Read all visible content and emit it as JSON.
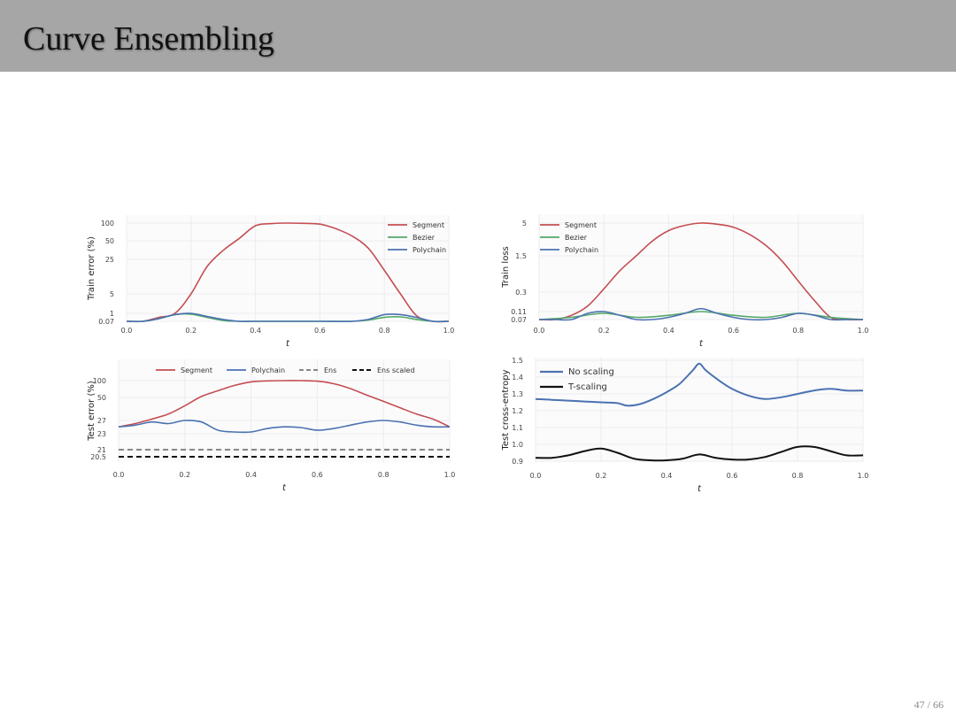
{
  "slide": {
    "title": "Curve Ensembling",
    "page_current": "47",
    "page_separator": " / ",
    "page_total": "66",
    "colors": {
      "title_bar": "#a6a6a6",
      "background": "#ffffff"
    }
  },
  "chart_data": [
    {
      "type": "line",
      "xlabel": "t",
      "ylabel": "Train error (%)",
      "xlim": [
        0,
        1
      ],
      "xticks": [
        "0.0",
        "0.2",
        "0.4",
        "0.6",
        "0.8",
        "1.0"
      ],
      "yticks": [
        "0.07",
        "1",
        "5",
        "25",
        "50",
        "100"
      ],
      "yscale": "nonlinear (tick labels as shown)",
      "grid": true,
      "legend": "top-right",
      "series": [
        {
          "name": "Segment",
          "color": "#c44e52",
          "x": [
            0,
            0.05,
            0.1,
            0.15,
            0.2,
            0.25,
            0.3,
            0.35,
            0.4,
            0.45,
            0.5,
            0.55,
            0.6,
            0.65,
            0.7,
            0.75,
            0.8,
            0.85,
            0.9,
            0.95,
            1.0
          ],
          "y": [
            0.07,
            0.07,
            0.3,
            1,
            5,
            18,
            35,
            55,
            90,
            98,
            100,
            99,
            96,
            80,
            60,
            38,
            15,
            5,
            0.5,
            0.07,
            0.07
          ]
        },
        {
          "name": "Bezier",
          "color": "#55a868",
          "x": [
            0,
            0.05,
            0.1,
            0.15,
            0.2,
            0.25,
            0.3,
            0.35,
            0.4,
            0.5,
            0.6,
            0.7,
            0.75,
            0.8,
            0.85,
            0.9,
            0.95,
            1.0
          ],
          "y": [
            0.07,
            0.07,
            0.2,
            0.7,
            0.8,
            0.3,
            0.1,
            0.07,
            0.07,
            0.07,
            0.07,
            0.07,
            0.12,
            0.3,
            0.35,
            0.15,
            0.07,
            0.07
          ]
        },
        {
          "name": "Polychain",
          "color": "#4c72b0",
          "x": [
            0,
            0.05,
            0.1,
            0.15,
            0.2,
            0.25,
            0.3,
            0.35,
            0.4,
            0.5,
            0.6,
            0.7,
            0.75,
            0.8,
            0.85,
            0.9,
            0.95,
            1.0
          ],
          "y": [
            0.07,
            0.07,
            0.2,
            0.7,
            1,
            0.4,
            0.15,
            0.07,
            0.07,
            0.07,
            0.07,
            0.07,
            0.15,
            0.7,
            0.7,
            0.3,
            0.07,
            0.07
          ]
        }
      ]
    },
    {
      "type": "line",
      "xlabel": "t",
      "ylabel": "Train loss",
      "xlim": [
        0,
        1
      ],
      "xticks": [
        "0.0",
        "0.2",
        "0.4",
        "0.6",
        "0.8",
        "1.0"
      ],
      "yticks": [
        "0.07",
        "0.11",
        "0.3",
        "1.5",
        "5"
      ],
      "yscale": "nonlinear (tick labels as shown)",
      "grid": true,
      "legend": "top-left",
      "series": [
        {
          "name": "Segment",
          "color": "#c44e52",
          "x": [
            0,
            0.05,
            0.1,
            0.15,
            0.2,
            0.25,
            0.3,
            0.35,
            0.4,
            0.45,
            0.5,
            0.55,
            0.6,
            0.65,
            0.7,
            0.75,
            0.8,
            0.85,
            0.9,
            0.95,
            1.0
          ],
          "y": [
            0.07,
            0.07,
            0.09,
            0.15,
            0.35,
            0.8,
            1.5,
            2.6,
            3.8,
            4.6,
            5,
            4.8,
            4.3,
            3.3,
            2.2,
            1.2,
            0.5,
            0.2,
            0.08,
            0.07,
            0.07
          ]
        },
        {
          "name": "Bezier",
          "color": "#55a868",
          "x": [
            0,
            0.1,
            0.2,
            0.3,
            0.4,
            0.5,
            0.6,
            0.7,
            0.8,
            0.9,
            1.0
          ],
          "y": [
            0.07,
            0.08,
            0.1,
            0.08,
            0.09,
            0.11,
            0.09,
            0.08,
            0.1,
            0.08,
            0.07
          ]
        },
        {
          "name": "Polychain",
          "color": "#4c72b0",
          "x": [
            0,
            0.05,
            0.1,
            0.15,
            0.2,
            0.25,
            0.3,
            0.35,
            0.4,
            0.45,
            0.5,
            0.55,
            0.6,
            0.65,
            0.7,
            0.75,
            0.8,
            0.85,
            0.9,
            0.95,
            1.0
          ],
          "y": [
            0.07,
            0.06,
            0.07,
            0.1,
            0.11,
            0.09,
            0.07,
            0.07,
            0.08,
            0.1,
            0.13,
            0.1,
            0.08,
            0.07,
            0.07,
            0.08,
            0.1,
            0.09,
            0.07,
            0.07,
            0.07
          ]
        }
      ]
    },
    {
      "type": "line",
      "xlabel": "t",
      "ylabel": "Test error (%)",
      "xlim": [
        0,
        1
      ],
      "xticks": [
        "0.0",
        "0.2",
        "0.4",
        "0.6",
        "0.8",
        "1.0"
      ],
      "yticks": [
        "20.5",
        "21",
        "23",
        "27",
        "50",
        "100"
      ],
      "yscale": "nonlinear (tick labels as shown)",
      "grid": true,
      "legend": "top (horizontal)",
      "series": [
        {
          "name": "Segment",
          "color": "#c44e52",
          "style": "solid",
          "x": [
            0,
            0.05,
            0.1,
            0.15,
            0.2,
            0.25,
            0.3,
            0.35,
            0.4,
            0.45,
            0.5,
            0.55,
            0.6,
            0.65,
            0.7,
            0.75,
            0.8,
            0.85,
            0.9,
            0.95,
            1.0
          ],
          "y": [
            25,
            26,
            28,
            32,
            40,
            52,
            66,
            82,
            95,
            99,
            100,
            100,
            98,
            88,
            72,
            55,
            45,
            38,
            32,
            28,
            25
          ]
        },
        {
          "name": "Polychain",
          "color": "#4c72b0",
          "style": "solid",
          "x": [
            0,
            0.05,
            0.1,
            0.15,
            0.2,
            0.25,
            0.3,
            0.35,
            0.4,
            0.45,
            0.5,
            0.55,
            0.6,
            0.65,
            0.7,
            0.75,
            0.8,
            0.85,
            0.9,
            0.95,
            1.0
          ],
          "y": [
            25,
            25.5,
            26.5,
            26,
            27,
            26.5,
            24,
            23.5,
            23.5,
            24.5,
            25,
            24.8,
            24,
            24.5,
            25.5,
            26.5,
            27,
            26.5,
            25.5,
            25,
            25
          ]
        },
        {
          "name": "Ens",
          "color": "#444444",
          "style": "dashed-thin",
          "x": [
            0,
            1.0
          ],
          "y": [
            21,
            21
          ]
        },
        {
          "name": "Ens scaled",
          "color": "#111111",
          "style": "dashed-thick",
          "x": [
            0,
            1.0
          ],
          "y": [
            20.5,
            20.5
          ]
        }
      ]
    },
    {
      "type": "line",
      "xlabel": "t",
      "ylabel": "Test cross-entropy",
      "xlim": [
        0,
        1
      ],
      "ylim": [
        0.9,
        1.5
      ],
      "xticks": [
        "0.0",
        "0.2",
        "0.4",
        "0.6",
        "0.8",
        "1.0"
      ],
      "yticks": [
        "0.9",
        "1.0",
        "1.1",
        "1.2",
        "1.3",
        "1.4",
        "1.5"
      ],
      "grid": true,
      "legend": "top-left",
      "series": [
        {
          "name": "No scaling",
          "color": "#4c72b0",
          "x": [
            0,
            0.05,
            0.1,
            0.15,
            0.2,
            0.25,
            0.28,
            0.32,
            0.36,
            0.4,
            0.44,
            0.48,
            0.5,
            0.52,
            0.56,
            0.6,
            0.65,
            0.7,
            0.75,
            0.8,
            0.85,
            0.9,
            0.95,
            1.0
          ],
          "y": [
            1.27,
            1.265,
            1.26,
            1.255,
            1.25,
            1.245,
            1.23,
            1.24,
            1.27,
            1.31,
            1.36,
            1.44,
            1.48,
            1.44,
            1.38,
            1.33,
            1.29,
            1.27,
            1.28,
            1.3,
            1.32,
            1.33,
            1.32,
            1.32
          ]
        },
        {
          "name": "T-scaling",
          "color": "#111111",
          "x": [
            0,
            0.05,
            0.1,
            0.15,
            0.2,
            0.25,
            0.3,
            0.35,
            0.4,
            0.45,
            0.5,
            0.55,
            0.6,
            0.65,
            0.7,
            0.75,
            0.8,
            0.85,
            0.9,
            0.95,
            1.0
          ],
          "y": [
            0.92,
            0.92,
            0.935,
            0.96,
            0.975,
            0.95,
            0.915,
            0.905,
            0.905,
            0.915,
            0.94,
            0.92,
            0.91,
            0.91,
            0.925,
            0.955,
            0.985,
            0.985,
            0.96,
            0.935,
            0.935
          ]
        }
      ]
    }
  ]
}
